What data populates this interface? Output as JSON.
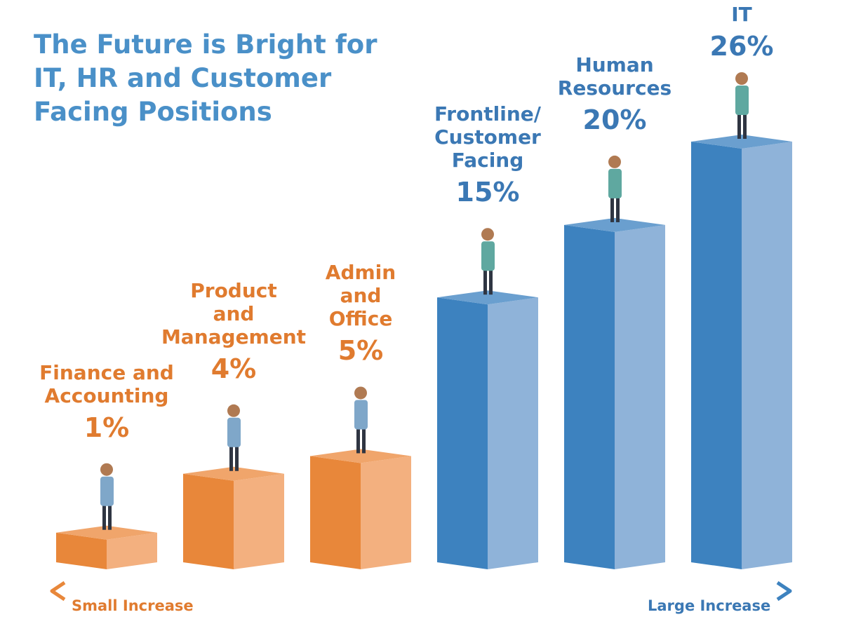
{
  "colors": {
    "title": "#4a90c8",
    "orange_front": "#e8873a",
    "orange_side": "#f3b07f",
    "orange_top": "#f0a56b",
    "blue_front": "#3d82bf",
    "blue_side": "#8fb3d9",
    "blue_top": "#6a9fcf",
    "orange_text": "#e07b2f",
    "blue_text": "#3b78b4"
  },
  "chart_data": {
    "type": "bar",
    "title": "The Future is Bright for IT, HR and Customer Facing Positions",
    "categories": [
      "Finance and\nAccounting",
      "Product\nand\nManagement",
      "Admin\nand\nOffice",
      "Frontline/\nCustomer\nFacing",
      "Human\nResources",
      "IT"
    ],
    "values": [
      1,
      4,
      5,
      15,
      20,
      26
    ],
    "value_labels": [
      "1%",
      "4%",
      "5%",
      "15%",
      "20%",
      "26%"
    ],
    "ylim": [
      0,
      26
    ],
    "axis": {
      "left_label": "Small Increase",
      "right_label": "Large Increase"
    }
  }
}
